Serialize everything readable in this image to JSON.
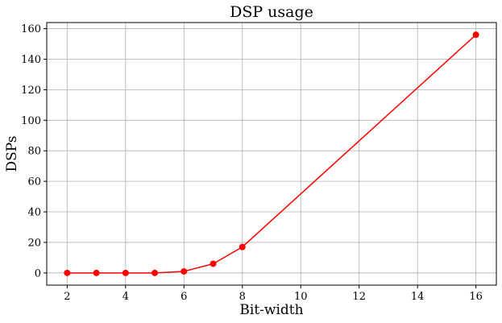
{
  "chart_data": {
    "type": "line",
    "title": "DSP usage",
    "xlabel": "Bit-width",
    "ylabel": "DSPs",
    "xlim": [
      1.3,
      16.7
    ],
    "ylim": [
      -8,
      164
    ],
    "xticks": [
      2,
      4,
      6,
      8,
      10,
      12,
      14,
      16
    ],
    "yticks": [
      0,
      20,
      40,
      60,
      80,
      100,
      120,
      140,
      160
    ],
    "grid": true,
    "series": [
      {
        "color": "#ff0000",
        "marker": "circle",
        "x": [
          2,
          3,
          4,
          5,
          6,
          7,
          8,
          16
        ],
        "y": [
          0,
          0,
          0,
          0,
          1,
          6,
          17,
          156
        ]
      }
    ]
  }
}
